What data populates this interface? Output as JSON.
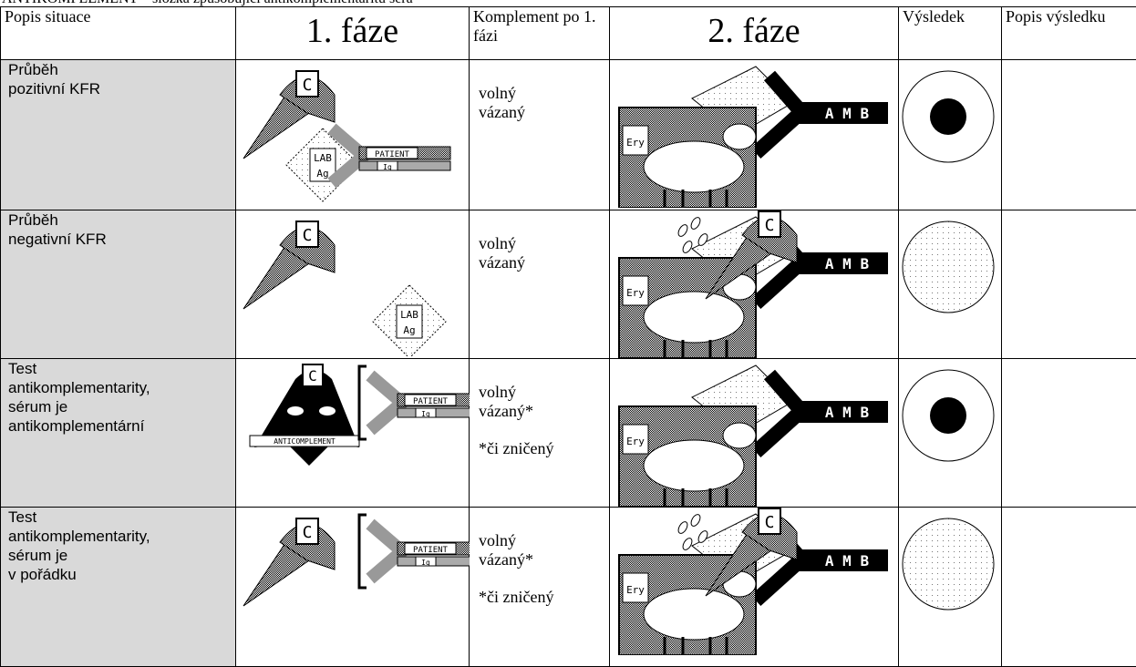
{
  "header": {
    "note": "ANTIKOMPLEMENT – složka způsobující antikomplementaritu séra"
  },
  "table": {
    "columns": [
      "Popis situace",
      "1. fáze",
      "Komplement po 1. fázi",
      "2. fáze",
      "Výsledek",
      "Popis výsledku"
    ],
    "rows": [
      {
        "description": [
          "Průběh",
          "pozitivní KFR"
        ],
        "complement": [
          "volný",
          "vázaný"
        ]
      },
      {
        "description": [
          "Průběh",
          "negativní KFR"
        ],
        "complement": [
          "volný",
          "vázaný"
        ]
      },
      {
        "description": [
          "Test",
          "antikomplementarity,",
          "sérum je",
          "antikomplementární"
        ],
        "complement": [
          "volný",
          "vázaný*"
        ],
        "footnote": "*či zničený"
      },
      {
        "description": [
          "Test",
          "antikomplementarity,",
          "sérum je",
          "v pořádku"
        ],
        "complement": [
          "volný",
          "vázaný*"
        ],
        "footnote": "*či zničený"
      }
    ]
  },
  "icons": {
    "complement": "C",
    "lab": "LAB",
    "antigen": "Ag",
    "patient": "PATIENT",
    "ig": "Ig",
    "ery": "Ery",
    "amb": "A M B",
    "anticomplement": "ANTICOMPLEMENT"
  }
}
